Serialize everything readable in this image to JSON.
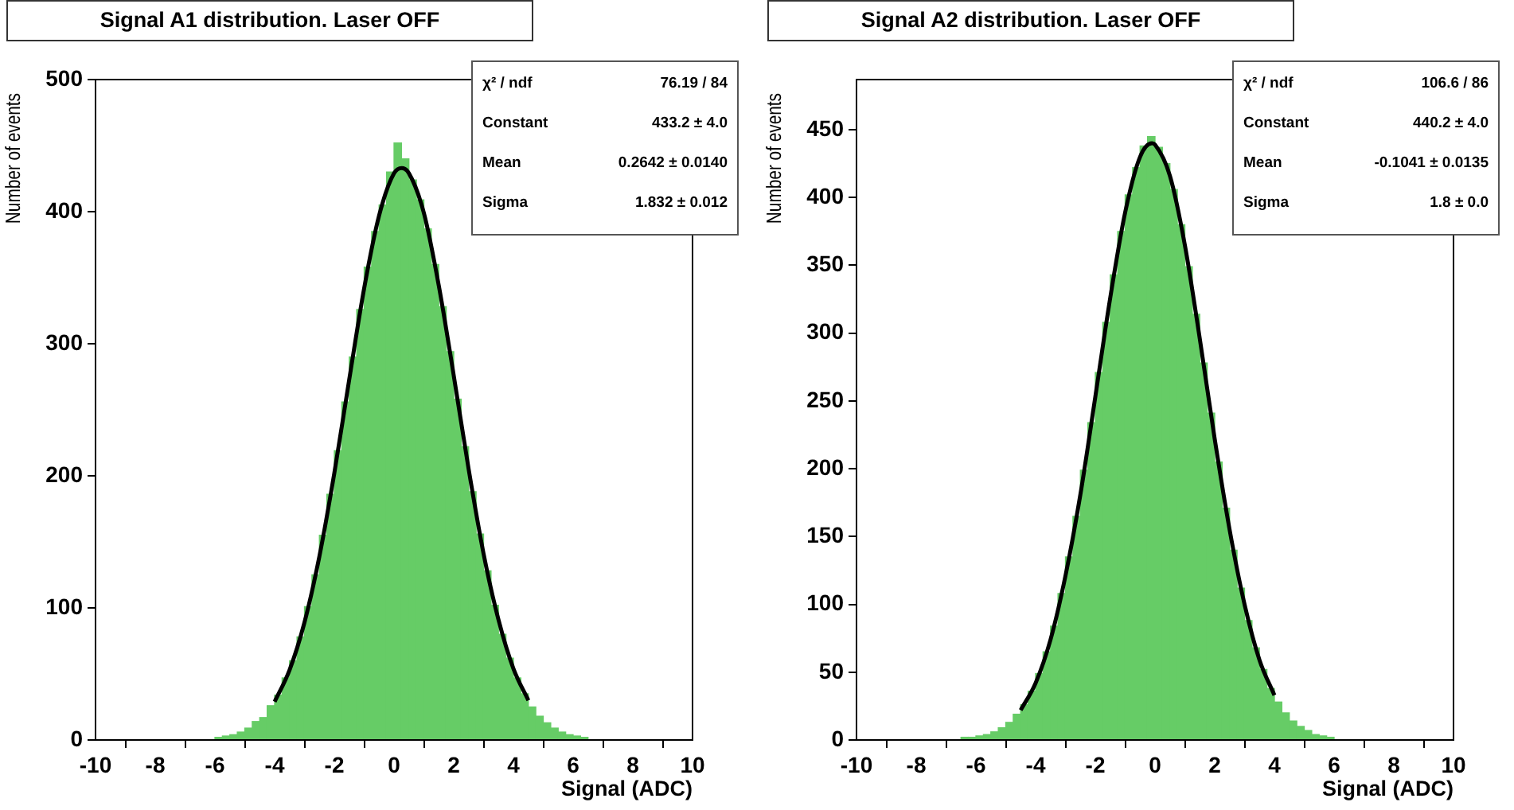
{
  "chart_data": [
    {
      "type": "histogram",
      "title": "Signal A1 distribution. Laser OFF",
      "xlabel": "Signal (ADC)",
      "ylabel": "Number of events",
      "color": "#66cc66",
      "marker": "none",
      "bins": [
        -6,
        -5.75,
        -5.5,
        -5.25,
        -5,
        -4.75,
        -4.5,
        -4.25,
        -4,
        -3.75,
        -3.5,
        -3.25,
        -3,
        -2.75,
        -2.5,
        -2.25,
        -2,
        -1.75,
        -1.5,
        -1.25,
        -1,
        -0.75,
        -0.5,
        -0.25,
        0,
        0.25,
        0.5,
        0.75,
        1,
        1.25,
        1.5,
        1.75,
        2,
        2.25,
        2.5,
        2.75,
        3,
        3.25,
        3.5,
        3.75,
        4,
        4.25,
        4.5,
        4.75,
        5,
        5.25,
        5.5,
        5.75,
        6,
        6.25,
        6.5
      ],
      "values": [
        2,
        3,
        4,
        6,
        9,
        14,
        17,
        26,
        34,
        47,
        60,
        78,
        101,
        125,
        155,
        186,
        219,
        256,
        290,
        326,
        358,
        385,
        405,
        430,
        452,
        440,
        424,
        409,
        387,
        360,
        328,
        294,
        258,
        222,
        188,
        156,
        128,
        102,
        80,
        62,
        47,
        35,
        25,
        18,
        13,
        9,
        6,
        4,
        3,
        2
      ],
      "series": [
        {
          "type": "line",
          "color": "#000000",
          "x": [
            -4,
            -3.5,
            -3,
            -2.5,
            -2,
            -1.5,
            -1,
            -0.5,
            0,
            0.26,
            0.5,
            1,
            1.5,
            2,
            2.5,
            3,
            3.5,
            4,
            4.5
          ],
          "values": [
            29,
            53,
            89,
            139,
            202,
            273,
            342,
            397,
            429,
            433,
            429,
            399,
            344,
            276,
            205,
            141,
            91,
            54,
            30
          ]
        }
      ],
      "xlim": [
        -10,
        10
      ],
      "ylim": [
        0,
        500
      ],
      "xticks": [
        -10,
        -8,
        -6,
        -4,
        -2,
        0,
        2,
        4,
        6,
        8,
        10
      ],
      "yticks": [
        0,
        100,
        200,
        300,
        400,
        500
      ],
      "annotations": [
        "χ² / ndf",
        "76.19 / 84",
        "Constant",
        "433.2 ± 4.0",
        "Mean",
        "0.2642 ± 0.0140",
        "Sigma",
        "1.832 ± 0.012"
      ]
    },
    {
      "type": "histogram",
      "title": "Signal A2 distribution. Laser OFF",
      "xlabel": "Signal (ADC)",
      "ylabel": "Number of events",
      "color": "#66cc66",
      "marker": "none",
      "bins": [
        -6.5,
        -6.25,
        -6,
        -5.75,
        -5.5,
        -5.25,
        -5,
        -4.75,
        -4.5,
        -4.25,
        -4,
        -3.75,
        -3.5,
        -3.25,
        -3,
        -2.75,
        -2.5,
        -2.25,
        -2,
        -1.75,
        -1.5,
        -1.25,
        -1,
        -0.75,
        -0.5,
        -0.25,
        0,
        0.25,
        0.5,
        0.75,
        1,
        1.25,
        1.5,
        1.75,
        2,
        2.25,
        2.5,
        2.75,
        3,
        3.25,
        3.5,
        3.75,
        4,
        4.25,
        4.5,
        4.75,
        5,
        5.25,
        5.5,
        5.75,
        6
      ],
      "values": [
        2,
        2,
        3,
        4,
        6,
        9,
        13,
        19,
        26,
        36,
        49,
        65,
        84,
        108,
        135,
        165,
        199,
        234,
        271,
        308,
        343,
        375,
        402,
        422,
        438,
        445,
        437,
        425,
        406,
        380,
        349,
        314,
        278,
        241,
        205,
        171,
        140,
        112,
        88,
        68,
        52,
        38,
        28,
        20,
        14,
        10,
        7,
        4,
        3,
        2
      ],
      "series": [
        {
          "type": "line",
          "color": "#000000",
          "x": [
            -4.5,
            -4,
            -3.5,
            -3,
            -2.5,
            -2,
            -1.5,
            -1,
            -0.5,
            -0.1,
            0,
            0.5,
            1,
            1.5,
            2,
            2.5,
            3,
            3.5,
            4
          ],
          "values": [
            22,
            42,
            74,
            121,
            181,
            253,
            326,
            389,
            430,
            440,
            439,
            416,
            365,
            296,
            222,
            155,
            100,
            59,
            33
          ]
        }
      ],
      "xlim": [
        -10,
        10
      ],
      "ylim": [
        0,
        487
      ],
      "xticks": [
        -10,
        -8,
        -6,
        -4,
        -2,
        0,
        2,
        4,
        6,
        8,
        10
      ],
      "yticks": [
        0,
        50,
        100,
        150,
        200,
        250,
        300,
        350,
        400,
        450
      ],
      "annotations": [
        "χ² / ndf",
        "106.6 / 86",
        "Constant",
        "440.2 ± 4.0",
        "Mean",
        "-0.1041 ± 0.0135",
        "Sigma",
        "1.8 ± 0.0"
      ]
    }
  ]
}
